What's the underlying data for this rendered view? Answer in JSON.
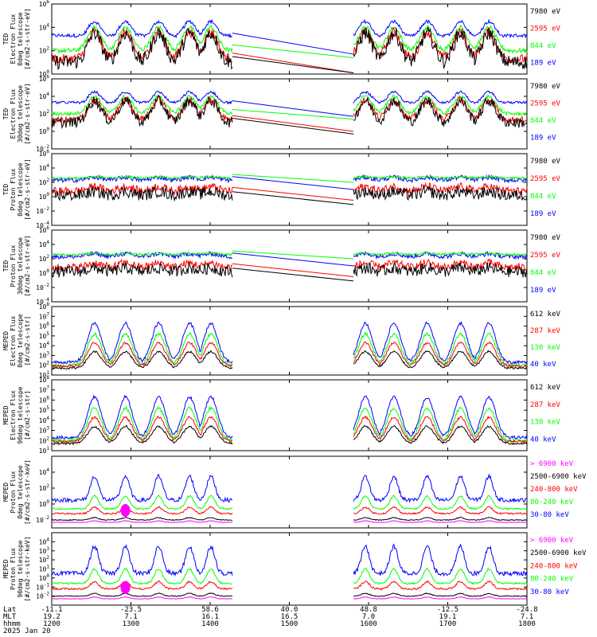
{
  "time_axis": {
    "ticks": [
      "1200",
      "1300",
      "1400",
      "1500",
      "1600",
      "1700",
      "1800"
    ],
    "row_labels": [
      "Lat",
      "MLT",
      "hhmm"
    ],
    "lat": [
      "-11.1",
      "-23.5",
      "58.6",
      "40.0",
      "48.8",
      "-12.5",
      "-24.8"
    ],
    "mlt": [
      "19.2",
      "7.1",
      "16.1",
      "16.5",
      "7.0",
      "19.1",
      "7.1"
    ],
    "date": "2025 Jan 20"
  },
  "colors": {
    "black": "#000000",
    "red": "#ff0000",
    "green": "#00ff00",
    "blue": "#0000ff",
    "magenta": "#ff00ff"
  },
  "chart_data": [
    {
      "type": "line",
      "ylabel": [
        "TED",
        "Electron Flux",
        "0deg telescope",
        "[#/cm2-s-str-eV]"
      ],
      "ylim": [
        1,
        1000000
      ],
      "yscale": "log",
      "ytick_exps": [
        0,
        2,
        4,
        6
      ],
      "series": [
        {
          "name": "7980 eV",
          "color": "black"
        },
        {
          "name": "2595 eV",
          "color": "red"
        },
        {
          "name": "844 eV",
          "color": "green"
        },
        {
          "name": "189 eV",
          "color": "blue"
        }
      ]
    },
    {
      "type": "line",
      "ylabel": [
        "TED",
        "Electron Flux",
        "30deg telescope",
        "[#/cm2-s-str-eV]"
      ],
      "ylim": [
        0.01,
        1000000
      ],
      "yscale": "log",
      "ytick_exps": [
        -2,
        0,
        2,
        4,
        6
      ],
      "series": [
        {
          "name": "7980 eV",
          "color": "black"
        },
        {
          "name": "2595 eV",
          "color": "red"
        },
        {
          "name": "844 eV",
          "color": "green"
        },
        {
          "name": "189 eV",
          "color": "blue"
        }
      ]
    },
    {
      "type": "line",
      "ylabel": [
        "TED",
        "Proton Flux",
        "0deg telescope",
        "[#/cm2-s-str-eV]"
      ],
      "ylim": [
        0.0001,
        1000000
      ],
      "yscale": "log",
      "ytick_exps": [
        -4,
        -2,
        0,
        2,
        4,
        6
      ],
      "series": [
        {
          "name": "7980 eV",
          "color": "black"
        },
        {
          "name": "2595 eV",
          "color": "red"
        },
        {
          "name": "844 eV",
          "color": "green"
        },
        {
          "name": "189 eV",
          "color": "blue"
        }
      ]
    },
    {
      "type": "line",
      "ylabel": [
        "TED",
        "Proton Flux",
        "30deg telescope",
        "[#/cm2-s-str-eV]"
      ],
      "ylim": [
        0.0001,
        1000000
      ],
      "yscale": "log",
      "ytick_exps": [
        -4,
        -2,
        0,
        2,
        4,
        6
      ],
      "series": [
        {
          "name": "7980 eV",
          "color": "black"
        },
        {
          "name": "2595 eV",
          "color": "red"
        },
        {
          "name": "844 eV",
          "color": "green"
        },
        {
          "name": "189 eV",
          "color": "blue"
        }
      ]
    },
    {
      "type": "line",
      "ylabel": [
        "MEPED",
        "Electron Flux",
        "0deg telescope",
        "[#/cm2-s-str]"
      ],
      "ylim": [
        10,
        100000000
      ],
      "yscale": "log",
      "ytick_exps": [
        1,
        2,
        3,
        4,
        5,
        6,
        7,
        8
      ],
      "series": [
        {
          "name": "612 keV",
          "color": "black"
        },
        {
          "name": "287 keV",
          "color": "red"
        },
        {
          "name": "130 keV",
          "color": "green"
        },
        {
          "name": "40 keV",
          "color": "blue"
        }
      ]
    },
    {
      "type": "line",
      "ylabel": [
        "MEPED",
        "Electron Flux",
        "90deg telescope",
        "[#/cm2-s-str]"
      ],
      "ylim": [
        10,
        100000000
      ],
      "yscale": "log",
      "ytick_exps": [
        1,
        2,
        3,
        4,
        5,
        6,
        7,
        8
      ],
      "series": [
        {
          "name": "612 keV",
          "color": "black"
        },
        {
          "name": "287 keV",
          "color": "red"
        },
        {
          "name": "130 keV",
          "color": "green"
        },
        {
          "name": "40 keV",
          "color": "blue"
        }
      ]
    },
    {
      "type": "line",
      "ylabel": [
        "MEPED",
        "Proton Flux",
        "0deg telescope",
        "[#/cm2-s-str-keV]"
      ],
      "ylim": [
        0.001,
        1000000
      ],
      "yscale": "log",
      "ytick_exps": [
        -2,
        0,
        2,
        4
      ],
      "series": [
        {
          "name": "> 6900 keV",
          "color": "magenta"
        },
        {
          "name": "2500-6900 keV",
          "color": "black"
        },
        {
          "name": "240-800 keV",
          "color": "red"
        },
        {
          "name": "80-240 keV",
          "color": "green"
        },
        {
          "name": "30-80 keV",
          "color": "blue"
        }
      ]
    },
    {
      "type": "line",
      "ylabel": [
        "MEPED",
        "Proton Flux",
        "90deg telescope",
        "[#/cm2-s-str-keV]"
      ],
      "ylim": [
        0.001,
        100000
      ],
      "yscale": "log",
      "ytick_exps": [
        -2,
        -1,
        0,
        1,
        2,
        3,
        4
      ],
      "series": [
        {
          "name": "> 6900 keV",
          "color": "magenta"
        },
        {
          "name": "2500-6900 keV",
          "color": "black"
        },
        {
          "name": "240-800 keV",
          "color": "red"
        },
        {
          "name": "80-240 keV",
          "color": "green"
        },
        {
          "name": "30-80 keV",
          "color": "blue"
        }
      ]
    }
  ]
}
